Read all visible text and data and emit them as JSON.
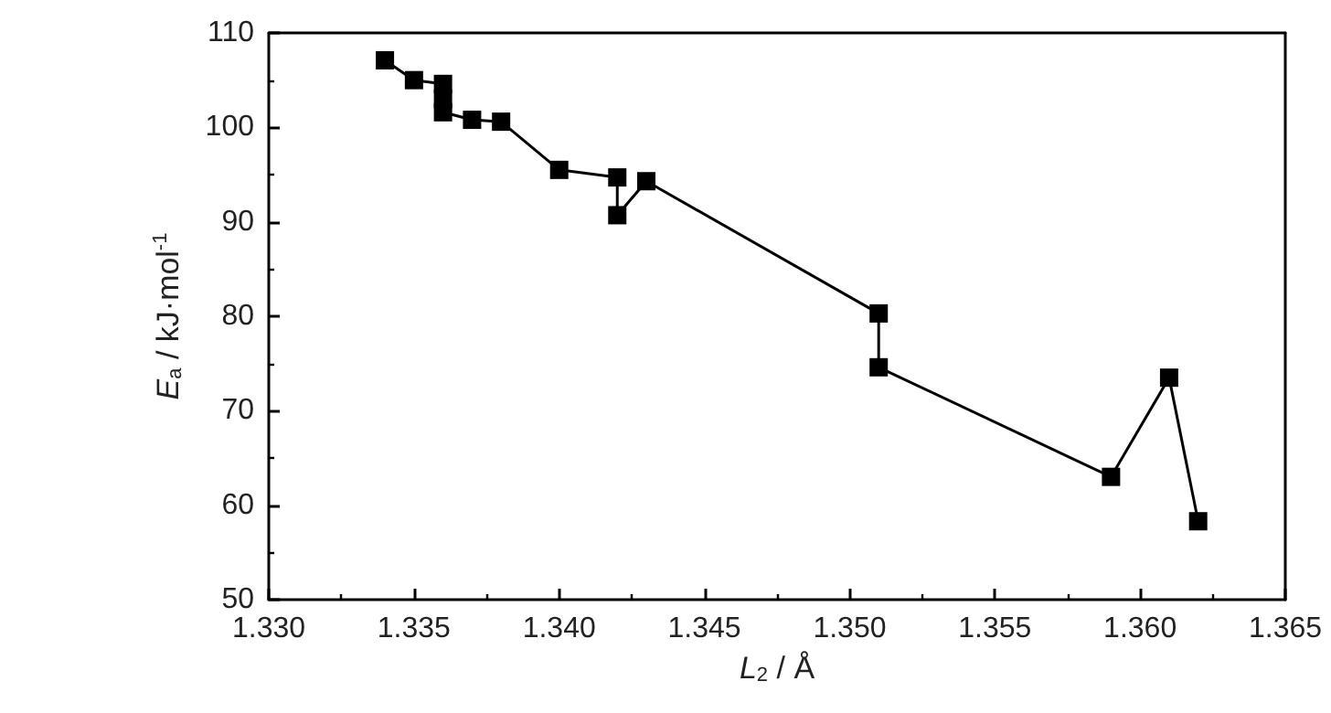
{
  "chart_data": {
    "type": "line",
    "xlabel": "L$_{2}$ / Å",
    "ylabel": "E$_{a}$ / kJ·mol$^{-1}$",
    "x": [
      1.334,
      1.335,
      1.336,
      1.336,
      1.336,
      1.337,
      1.338,
      1.34,
      1.342,
      1.342,
      1.343,
      1.351,
      1.351,
      1.359,
      1.361,
      1.362
    ],
    "series": [
      {
        "color": "#000000",
        "values": [
          107.1,
          105,
          104.6,
          103,
          101.6,
          100.8,
          100.6,
          95.5,
          94.7,
          90.7,
          94.3,
          80.3,
          74.6,
          63,
          73.5,
          58.3
        ]
      }
    ],
    "xlim": [
      1.33,
      1.365
    ],
    "xticks": [
      {
        "value": 1.33,
        "label": "1.330"
      },
      {
        "value": 1.335,
        "label": "1.335"
      },
      {
        "value": 1.34,
        "label": "1.340"
      },
      {
        "value": 1.345,
        "label": "1.345"
      },
      {
        "value": 1.35,
        "label": "1.350"
      },
      {
        "value": 1.355,
        "label": "1.355"
      },
      {
        "value": 1.36,
        "label": "1.360"
      },
      {
        "value": 1.365,
        "label": "1.365"
      }
    ],
    "ylim": [
      50,
      110
    ],
    "yticks": [
      50,
      60,
      70,
      80,
      90,
      100,
      110
    ],
    "grid": false,
    "marker": "square",
    "line_style": "solid"
  }
}
